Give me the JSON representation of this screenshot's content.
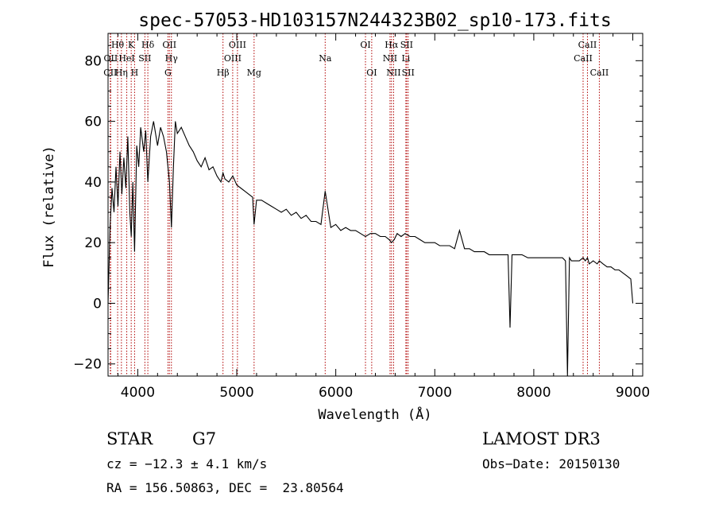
{
  "chart_data": {
    "type": "line",
    "title": "spec-57053-HD103157N244323B02_sp10-173.fits",
    "xlabel": "Wavelength (Å)",
    "ylabel": "Flux (relative)",
    "xlim": [
      3700,
      9100
    ],
    "ylim": [
      -24,
      89
    ],
    "xticks": [
      4000,
      5000,
      6000,
      7000,
      8000,
      9000
    ],
    "yticks": [
      -20,
      0,
      20,
      40,
      60,
      80
    ],
    "grid": false,
    "series": [
      {
        "name": "spectrum",
        "x": [
          3700,
          3720,
          3740,
          3760,
          3780,
          3800,
          3820,
          3840,
          3860,
          3880,
          3900,
          3920,
          3934,
          3950,
          3968,
          3990,
          4010,
          4030,
          4060,
          4080,
          4102,
          4130,
          4160,
          4200,
          4230,
          4260,
          4290,
          4320,
          4340,
          4360,
          4380,
          4400,
          4440,
          4480,
          4520,
          4560,
          4600,
          4640,
          4680,
          4720,
          4760,
          4800,
          4840,
          4861,
          4880,
          4920,
          4960,
          5000,
          5040,
          5080,
          5120,
          5160,
          5175,
          5200,
          5250,
          5300,
          5350,
          5400,
          5450,
          5500,
          5550,
          5600,
          5650,
          5700,
          5750,
          5800,
          5850,
          5893,
          5950,
          6000,
          6050,
          6100,
          6150,
          6200,
          6250,
          6300,
          6350,
          6400,
          6450,
          6500,
          6540,
          6563,
          6590,
          6620,
          6660,
          6700,
          6750,
          6800,
          6850,
          6900,
          6950,
          7000,
          7050,
          7100,
          7150,
          7200,
          7250,
          7300,
          7350,
          7400,
          7450,
          7500,
          7550,
          7600,
          7650,
          7700,
          7740,
          7760,
          7780,
          7820,
          7880,
          7940,
          8000,
          8060,
          8120,
          8180,
          8240,
          8290,
          8320,
          8340,
          8360,
          8380,
          8420,
          8460,
          8498,
          8520,
          8542,
          8560,
          8600,
          8640,
          8662,
          8700,
          8740,
          8780,
          8820,
          8860,
          8900,
          8940,
          8980,
          9000
        ],
        "y": [
          0,
          25,
          38,
          30,
          45,
          32,
          50,
          36,
          48,
          38,
          55,
          30,
          22,
          40,
          17,
          52,
          45,
          58,
          50,
          57,
          40,
          55,
          60,
          52,
          58,
          55,
          50,
          40,
          25,
          45,
          60,
          56,
          58,
          55,
          52,
          50,
          47,
          45,
          48,
          44,
          45,
          42,
          40,
          43,
          41,
          40,
          42,
          39,
          38,
          37,
          36,
          35,
          26,
          34,
          34,
          33,
          32,
          31,
          30,
          31,
          29,
          30,
          28,
          29,
          27,
          27,
          26,
          37,
          25,
          26,
          24,
          25,
          24,
          24,
          23,
          22,
          23,
          23,
          22,
          22,
          21,
          20,
          21,
          23,
          22,
          23,
          22,
          22,
          21,
          20,
          20,
          20,
          19,
          19,
          19,
          18,
          24,
          18,
          18,
          17,
          17,
          17,
          16,
          16,
          16,
          16,
          16,
          -8,
          16,
          16,
          16,
          15,
          15,
          15,
          15,
          15,
          15,
          15,
          14,
          -24,
          15,
          14,
          14,
          14,
          15,
          14,
          15,
          13,
          14,
          13,
          14,
          13,
          12,
          12,
          11,
          11,
          10,
          9,
          8,
          0
        ]
      }
    ],
    "lines": [
      {
        "name": "CII",
        "wl": 3723,
        "row": 2
      },
      {
        "name": "OII",
        "wl": 3727,
        "row": 1
      },
      {
        "name": "Hθ",
        "wl": 3797,
        "row": 0
      },
      {
        "name": "Hη",
        "wl": 3835,
        "row": 2
      },
      {
        "name": "HeI",
        "wl": 3889,
        "row": 1
      },
      {
        "name": "K",
        "wl": 3934,
        "row": 0
      },
      {
        "name": "H",
        "wl": 3968,
        "row": 2
      },
      {
        "name": "SII",
        "wl": 4072,
        "row": 1
      },
      {
        "name": "Hδ",
        "wl": 4102,
        "row": 0
      },
      {
        "name": "G",
        "wl": 4305,
        "row": 2
      },
      {
        "name": "OII",
        "wl": 4320,
        "row": 0
      },
      {
        "name": "Hγ",
        "wl": 4340,
        "row": 1
      },
      {
        "name": "Hβ",
        "wl": 4861,
        "row": 2
      },
      {
        "name": "OIII",
        "wl": 4959,
        "row": 1
      },
      {
        "name": "OIII",
        "wl": 5007,
        "row": 0
      },
      {
        "name": "Mg",
        "wl": 5175,
        "row": 2
      },
      {
        "name": "Na",
        "wl": 5893,
        "row": 1
      },
      {
        "name": "OI",
        "wl": 6300,
        "row": 0
      },
      {
        "name": "OI",
        "wl": 6363,
        "row": 2
      },
      {
        "name": "NII",
        "wl": 6548,
        "row": 1
      },
      {
        "name": "Hα",
        "wl": 6563,
        "row": 0
      },
      {
        "name": "NII",
        "wl": 6584,
        "row": 2
      },
      {
        "name": "Li",
        "wl": 6708,
        "row": 1
      },
      {
        "name": "SII",
        "wl": 6716,
        "row": 0
      },
      {
        "name": "SII",
        "wl": 6731,
        "row": 2
      },
      {
        "name": "CaII",
        "wl": 8498,
        "row": 1
      },
      {
        "name": "CaII",
        "wl": 8542,
        "row": 0
      },
      {
        "name": "CaII",
        "wl": 8662,
        "row": 2
      }
    ]
  },
  "info": {
    "object_class": "STAR",
    "subclass": "G7",
    "survey": "LAMOST DR3",
    "cz": "cz = −12.3 ± 4.1 km/s",
    "obs_date": "Obs−Date: 20150130",
    "coords": "RA = 156.50863, DEC =  23.80564"
  }
}
